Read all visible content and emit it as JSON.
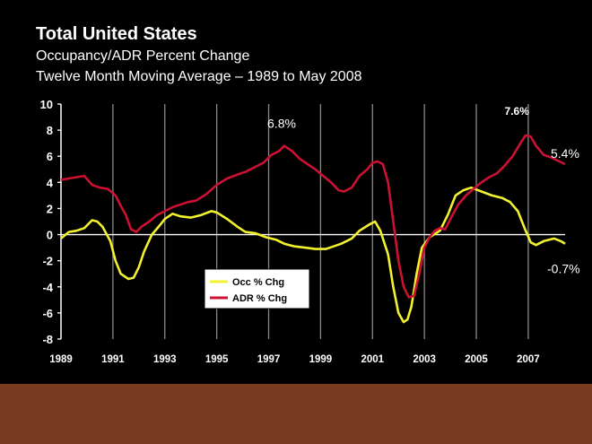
{
  "slide": {
    "title": "Total United States",
    "subtitle1": "Occupancy/ADR Percent Change",
    "subtitle2": "Twelve Month Moving Average – 1989 to May 2008"
  },
  "colors": {
    "background": "#000000",
    "footer": "#7a3b22",
    "occ": "#f2f230",
    "adr": "#cc1133",
    "gridline": "#888888"
  },
  "chart_data": {
    "type": "line",
    "title": "Total United States",
    "xlim": [
      1989,
      2008.42
    ],
    "ylim": [
      -8,
      10
    ],
    "y_ticks": [
      10,
      8,
      6,
      4,
      2,
      0,
      -2,
      -4,
      -6,
      -8
    ],
    "x_ticks": [
      1989,
      1991,
      1993,
      1995,
      1997,
      1999,
      2001,
      2003,
      2005,
      2007
    ],
    "x_tick_labels": [
      "1989",
      "1991",
      "1993",
      "1995",
      "1997",
      "1999",
      "2001",
      "2003",
      "2005",
      "2007"
    ],
    "vertical_gridlines": [
      1991,
      1993,
      1995,
      1997,
      1999,
      2001,
      2003,
      2005,
      2007
    ],
    "legend_position": "center-left",
    "series": [
      {
        "name": "Occ % Chg",
        "color": "#f2f230",
        "x": [
          1989.0,
          1989.3,
          1989.6,
          1989.9,
          1990.2,
          1990.4,
          1990.6,
          1990.9,
          1991.1,
          1991.3,
          1991.6,
          1991.8,
          1992.0,
          1992.2,
          1992.5,
          1992.8,
          1993.0,
          1993.3,
          1993.6,
          1994.0,
          1994.4,
          1994.8,
          1995.0,
          1995.4,
          1995.8,
          1996.1,
          1996.5,
          1996.9,
          1997.3,
          1997.6,
          1998.0,
          1998.4,
          1998.8,
          1999.2,
          1999.5,
          1999.8,
          2000.2,
          2000.5,
          2000.9,
          2001.1,
          2001.3,
          2001.6,
          2001.8,
          2002.0,
          2002.2,
          2002.35,
          2002.5,
          2002.7,
          2002.9,
          2003.2,
          2003.6,
          2003.9,
          2004.2,
          2004.5,
          2004.8,
          2005.2,
          2005.6,
          2006.0,
          2006.3,
          2006.6,
          2006.9,
          2007.1,
          2007.3,
          2007.6,
          2008.0,
          2008.25,
          2008.42
        ],
        "values": [
          -0.3,
          0.2,
          0.3,
          0.5,
          1.1,
          1.0,
          0.6,
          -0.5,
          -2.0,
          -3.0,
          -3.4,
          -3.3,
          -2.5,
          -1.3,
          0.0,
          0.7,
          1.2,
          1.6,
          1.4,
          1.3,
          1.5,
          1.8,
          1.7,
          1.2,
          0.6,
          0.2,
          0.1,
          -0.2,
          -0.4,
          -0.7,
          -0.9,
          -1.0,
          -1.1,
          -1.1,
          -0.9,
          -0.7,
          -0.3,
          0.3,
          0.8,
          1.0,
          0.3,
          -1.5,
          -4.0,
          -6.0,
          -6.7,
          -6.5,
          -5.5,
          -3.0,
          -1.0,
          -0.2,
          0.3,
          1.5,
          3.0,
          3.4,
          3.6,
          3.3,
          3.0,
          2.8,
          2.5,
          1.8,
          0.3,
          -0.6,
          -0.8,
          -0.5,
          -0.3,
          -0.5,
          -0.7
        ]
      },
      {
        "name": "ADR % Chg",
        "color": "#cc1133",
        "x": [
          1989.0,
          1989.3,
          1989.6,
          1989.9,
          1990.2,
          1990.5,
          1990.8,
          1991.1,
          1991.3,
          1991.5,
          1991.7,
          1991.9,
          1992.1,
          1992.4,
          1992.7,
          1993.0,
          1993.3,
          1993.6,
          1993.9,
          1994.2,
          1994.6,
          1995.0,
          1995.4,
          1995.8,
          1996.1,
          1996.5,
          1996.8,
          1997.1,
          1997.4,
          1997.6,
          1997.9,
          1998.2,
          1998.5,
          1998.8,
          1999.1,
          1999.4,
          1999.7,
          1999.9,
          2000.2,
          2000.5,
          2000.8,
          2001.0,
          2001.2,
          2001.4,
          2001.6,
          2001.8,
          2002.0,
          2002.2,
          2002.4,
          2002.6,
          2002.8,
          2003.0,
          2003.2,
          2003.4,
          2003.6,
          2003.8,
          2004.0,
          2004.3,
          2004.6,
          2004.9,
          2005.2,
          2005.5,
          2005.8,
          2006.1,
          2006.4,
          2006.7,
          2006.9,
          2007.1,
          2007.3,
          2007.6,
          2007.9,
          2008.2,
          2008.42
        ],
        "values": [
          4.2,
          4.3,
          4.4,
          4.5,
          3.8,
          3.6,
          3.5,
          3.0,
          2.2,
          1.5,
          0.4,
          0.2,
          0.6,
          1.0,
          1.5,
          1.8,
          2.1,
          2.3,
          2.5,
          2.6,
          3.1,
          3.8,
          4.3,
          4.6,
          4.8,
          5.2,
          5.5,
          6.1,
          6.4,
          6.8,
          6.4,
          5.8,
          5.4,
          5.0,
          4.5,
          4.0,
          3.4,
          3.3,
          3.6,
          4.5,
          5.0,
          5.5,
          5.6,
          5.4,
          4.0,
          1.0,
          -2.0,
          -4.0,
          -4.8,
          -4.7,
          -3.0,
          -1.0,
          -0.2,
          0.3,
          0.5,
          0.4,
          1.2,
          2.3,
          3.0,
          3.5,
          4.0,
          4.4,
          4.7,
          5.3,
          6.0,
          7.0,
          7.6,
          7.5,
          6.8,
          6.1,
          5.9,
          5.6,
          5.4
        ]
      }
    ],
    "annotations": [
      {
        "text": "6.8%",
        "x": 1997.5,
        "y": 6.8,
        "bold": false
      },
      {
        "text": "7.6%",
        "x": 2006.7,
        "y": 7.6,
        "bold": true
      },
      {
        "text": "5.4%",
        "x": 2008.42,
        "y": 5.4,
        "bold": false
      },
      {
        "text": "-0.7%",
        "x": 2008.42,
        "y": -0.7,
        "bold": false
      }
    ]
  }
}
